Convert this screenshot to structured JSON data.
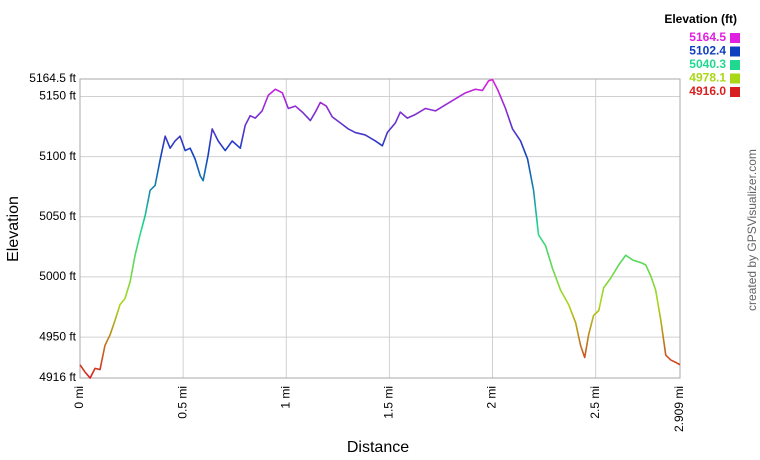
{
  "chart_data": {
    "type": "line",
    "x_label": "Distance",
    "y_label": "Elevation",
    "credit": "created by GPSVisualizer.com",
    "xlim": [
      0,
      2.909
    ],
    "ylim": [
      4916,
      5164.5
    ],
    "xticks": [
      {
        "value": 0,
        "label": "0 mi"
      },
      {
        "value": 0.5,
        "label": "0.5 mi"
      },
      {
        "value": 1,
        "label": "1 mi"
      },
      {
        "value": 1.5,
        "label": "1.5 mi"
      },
      {
        "value": 2,
        "label": "2 mi"
      },
      {
        "value": 2.5,
        "label": "2.5 mi"
      },
      {
        "value": 2.909,
        "label": "2.909 mi"
      }
    ],
    "yticks": [
      {
        "value": 4916,
        "label": "4916 ft"
      },
      {
        "value": 4950,
        "label": "4950 ft"
      },
      {
        "value": 5000,
        "label": "5000 ft"
      },
      {
        "value": 5050,
        "label": "5050 ft"
      },
      {
        "value": 5100,
        "label": "5100 ft"
      },
      {
        "value": 5150,
        "label": "5150 ft"
      },
      {
        "value": 5164.5,
        "label": "5164.5 ft"
      }
    ],
    "grid": true,
    "legend": {
      "title": "Elevation (ft)",
      "values": [
        5164.5,
        5102.4,
        5040.3,
        4978.1,
        {
          "value": 4916,
          "label": "4916.0"
        }
      ],
      "colors": [
        "#e020e0",
        "#1040c0",
        "#20d890",
        "#a8d818",
        "#d82020"
      ]
    },
    "x": [
      0,
      0.024,
      0.049,
      0.073,
      0.097,
      0.121,
      0.146,
      0.17,
      0.194,
      0.218,
      0.243,
      0.267,
      0.291,
      0.316,
      0.34,
      0.364,
      0.388,
      0.413,
      0.437,
      0.461,
      0.485,
      0.51,
      0.534,
      0.558,
      0.583,
      0.597,
      0.621,
      0.641,
      0.67,
      0.704,
      0.738,
      0.777,
      0.801,
      0.825,
      0.85,
      0.883,
      0.913,
      0.947,
      0.981,
      1.01,
      1.044,
      1.078,
      1.117,
      1.141,
      1.165,
      1.194,
      1.223,
      1.262,
      1.301,
      1.335,
      1.383,
      1.432,
      1.466,
      1.49,
      1.529,
      1.553,
      1.587,
      1.626,
      1.675,
      1.723,
      1.772,
      1.82,
      1.869,
      1.917,
      1.951,
      1.981,
      2.0,
      2.024,
      2.063,
      2.097,
      2.136,
      2.17,
      2.199,
      2.223,
      2.257,
      2.291,
      2.33,
      2.369,
      2.403,
      2.427,
      2.447,
      2.466,
      2.49,
      2.515,
      2.539,
      2.573,
      2.612,
      2.646,
      2.68,
      2.718,
      2.743,
      2.767,
      2.791,
      2.816,
      2.84,
      2.864,
      2.888,
      2.909
    ],
    "values": [
      4927,
      4921,
      4916,
      4924,
      4923,
      4943,
      4952,
      4964,
      4977,
      4982,
      4996,
      5018,
      5035,
      5051,
      5072,
      5076,
      5097,
      5117,
      5107,
      5113,
      5117,
      5105,
      5107,
      5098,
      5084,
      5080,
      5101,
      5123,
      5113,
      5105,
      5113,
      5107,
      5126,
      5134,
      5132,
      5138,
      5151,
      5156,
      5153,
      5140,
      5142,
      5137,
      5130,
      5137,
      5145,
      5142,
      5133,
      5128,
      5123,
      5120,
      5118,
      5113,
      5109,
      5120,
      5128,
      5137,
      5132,
      5135,
      5140,
      5138,
      5143,
      5148,
      5153,
      5156,
      5155,
      5163,
      5164,
      5156,
      5140,
      5123,
      5113,
      5098,
      5072,
      5035,
      5026,
      5007,
      4989,
      4977,
      4962,
      4943,
      4933,
      4952,
      4968,
      4972,
      4991,
      4999,
      5010,
      5018,
      5014,
      5012,
      5010,
      5001,
      4989,
      4964,
      4935,
      4931,
      4929,
      4927
    ]
  }
}
